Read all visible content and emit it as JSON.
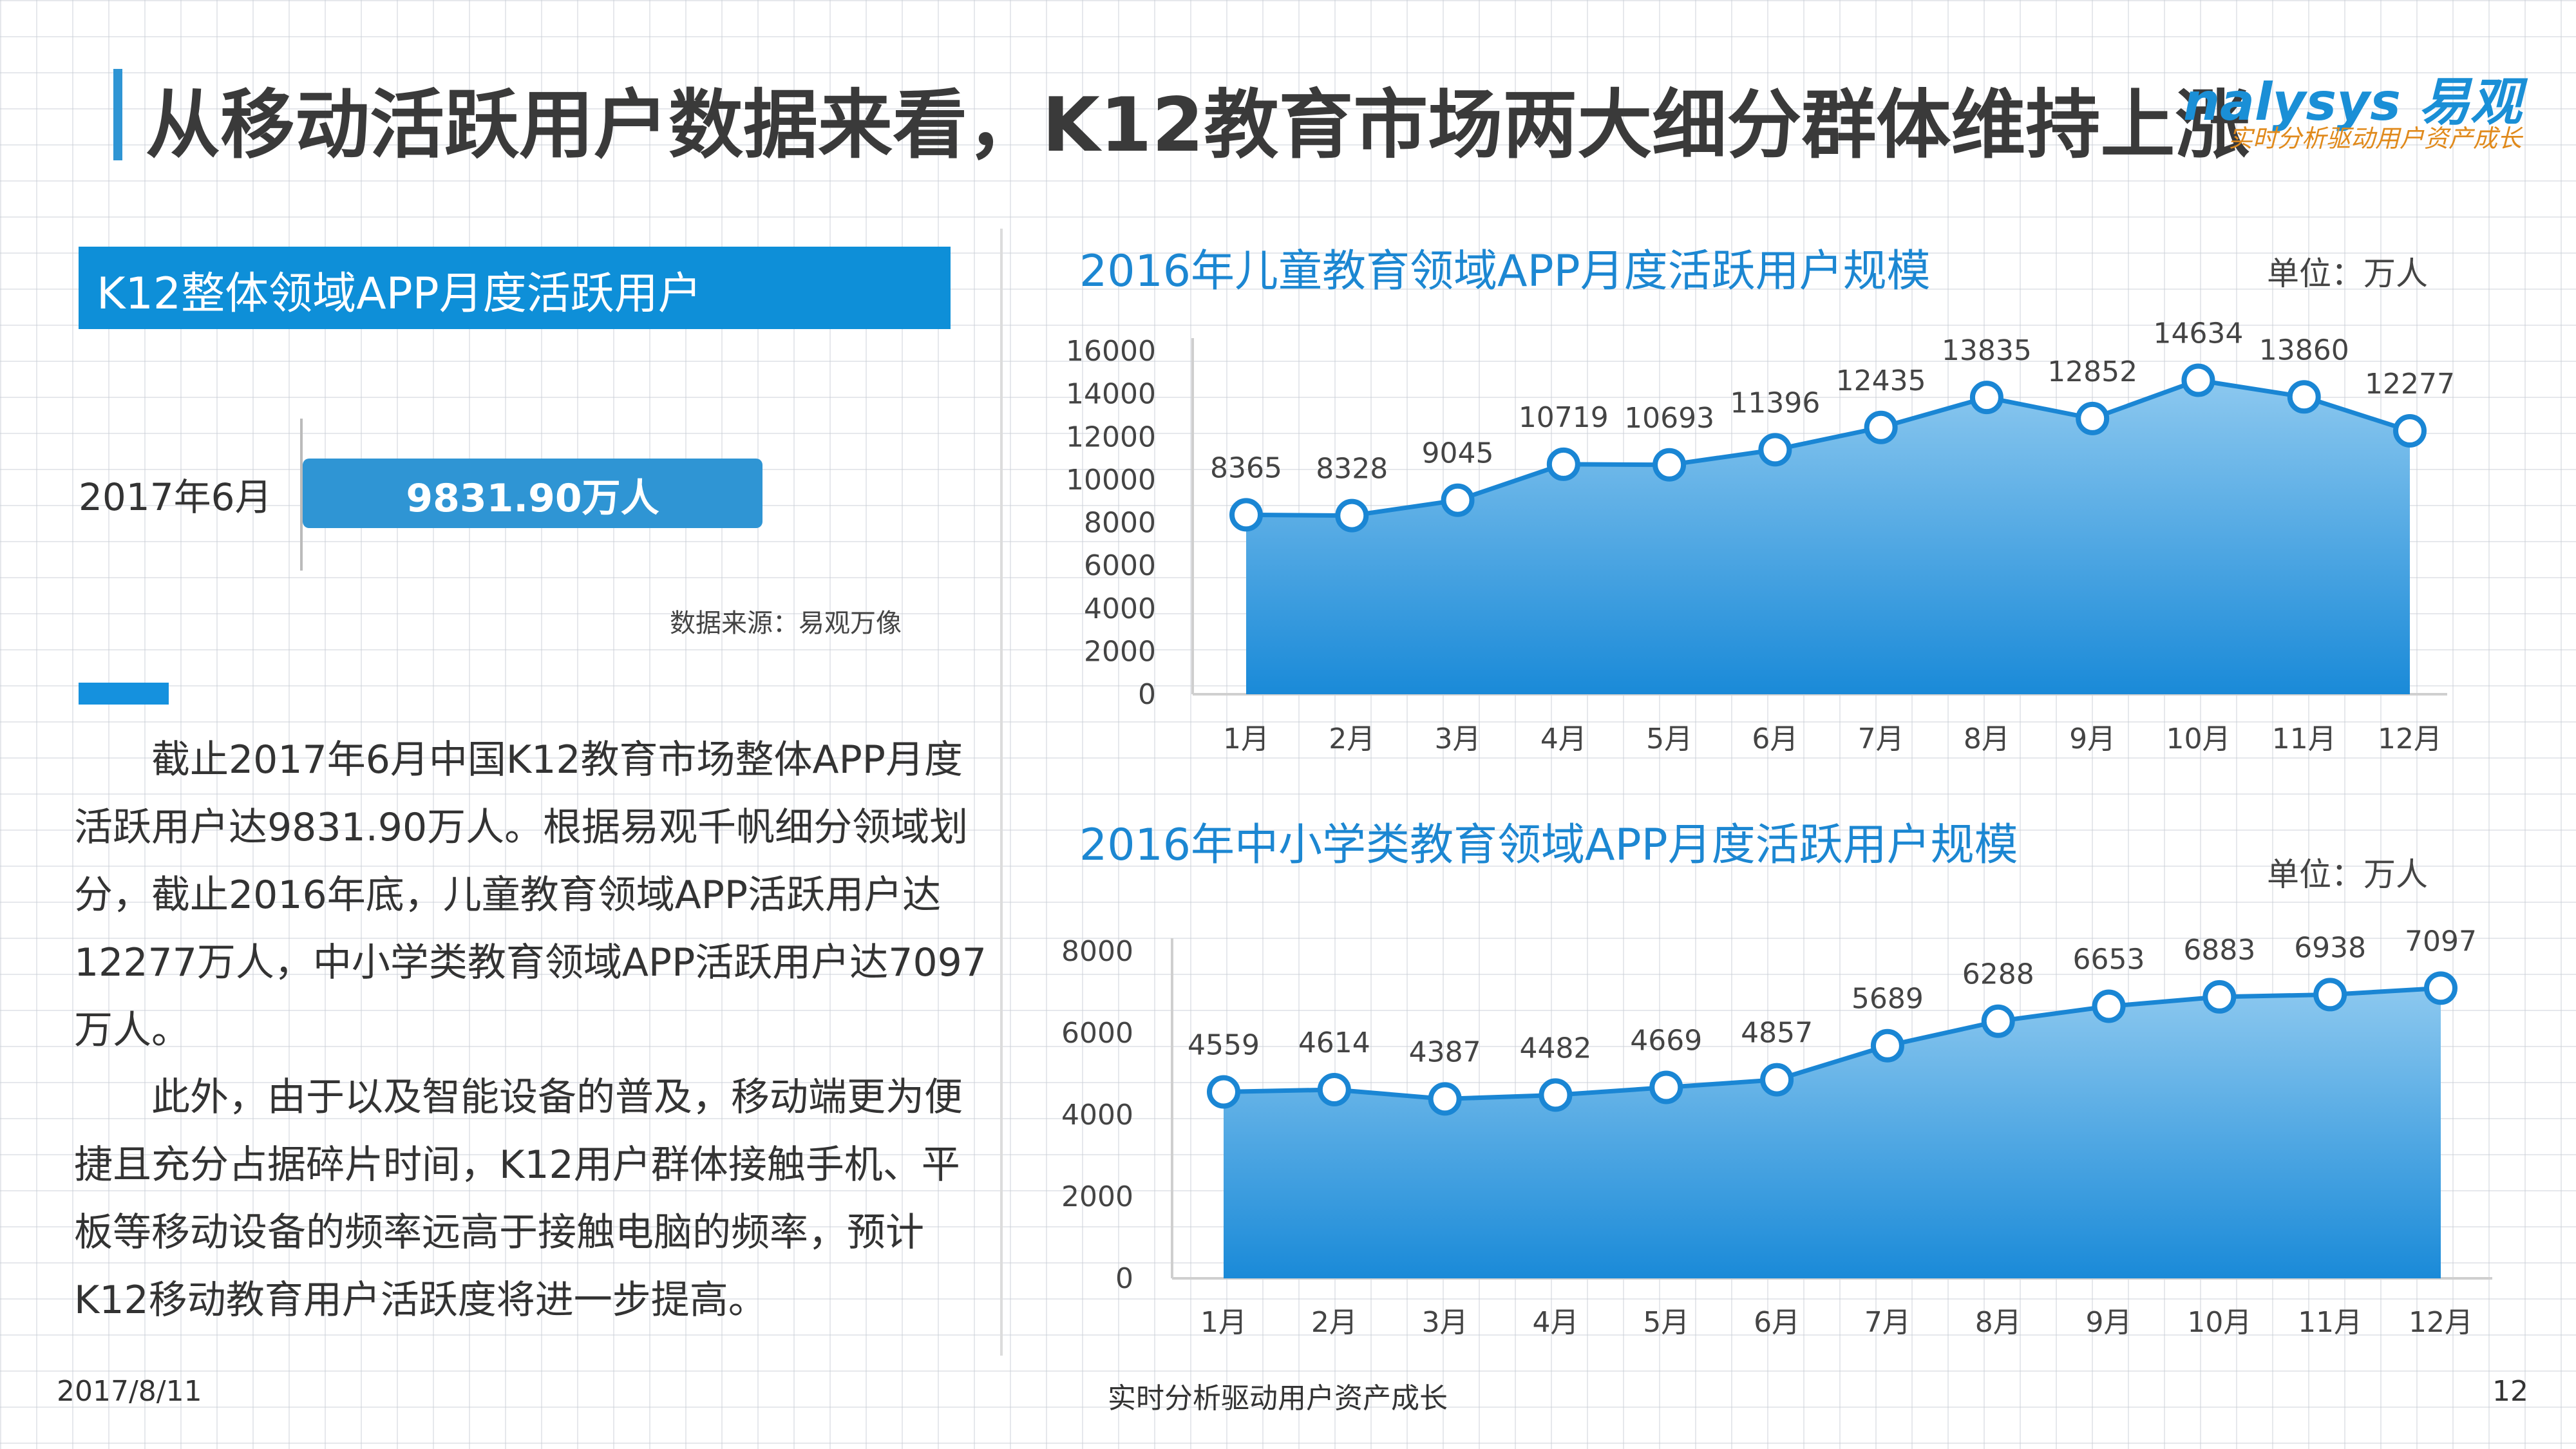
{
  "header": {
    "title": "从移动活跃用户数据来看，K12教育市场两大细分群体维持上涨",
    "logo_name": "nalysys 易观",
    "logo_slogan": "实时分析驱动用户资产成长"
  },
  "left": {
    "section_title": "K12整体领域APP月度活跃用户",
    "stat_date": "2017年6月",
    "stat_value": "9831.90万人",
    "source": "数据来源：易观万像",
    "para1_lines": [
      "　　截止2017年6月中国K12教育市场整体APP月度",
      "活跃用户达9831.90万人。根据易观千帆细分领域划",
      "分，截止2016年底，儿童教育领域APP活跃用户达",
      "12277万人，中小学类教育领域APP活跃用户达7097",
      "万人。"
    ],
    "para2_lines": [
      "　　此外，由于以及智能设备的普及，移动端更为便",
      "捷且充分占据碎片时间，K12用户群体接触手机、平",
      "板等移动设备的频率远高于接触电脑的频率，预计",
      "K12移动教育用户活跃度将进一步提高。"
    ]
  },
  "footer": {
    "date": "2017/8/11",
    "slogan": "实时分析驱动用户资产成长",
    "page": "12"
  },
  "chart_data": [
    {
      "type": "area",
      "title": "2016年儿童教育领域APP月度活跃用户规模",
      "unit": "单位：万人",
      "categories": [
        "1月",
        "2月",
        "3月",
        "4月",
        "5月",
        "6月",
        "7月",
        "8月",
        "9月",
        "10月",
        "11月",
        "12月"
      ],
      "values": [
        8365,
        8328,
        9045,
        10719,
        10693,
        11396,
        12435,
        13835,
        12852,
        14634,
        13860,
        12277
      ],
      "ylim": [
        0,
        16000
      ],
      "yticks": [
        0,
        2000,
        4000,
        6000,
        8000,
        10000,
        12000,
        14000,
        16000
      ],
      "colors": {
        "fill_top": "#8cc8ef",
        "fill_bottom": "#1a8ad8",
        "line": "#1a86d4",
        "marker": "#ffffff"
      }
    },
    {
      "type": "area",
      "title": "2016年中小学类教育领域APP月度活跃用户规模",
      "unit": "单位：万人",
      "categories": [
        "1月",
        "2月",
        "3月",
        "4月",
        "5月",
        "6月",
        "7月",
        "8月",
        "9月",
        "10月",
        "11月",
        "12月"
      ],
      "values": [
        4559,
        4614,
        4387,
        4482,
        4669,
        4857,
        5689,
        6288,
        6653,
        6883,
        6938,
        7097
      ],
      "ylim": [
        0,
        8000
      ],
      "yticks": [
        0,
        2000,
        4000,
        6000,
        8000
      ],
      "colors": {
        "fill_top": "#8cc8ef",
        "fill_bottom": "#1a8ad8",
        "line": "#1a86d4",
        "marker": "#ffffff"
      }
    }
  ]
}
